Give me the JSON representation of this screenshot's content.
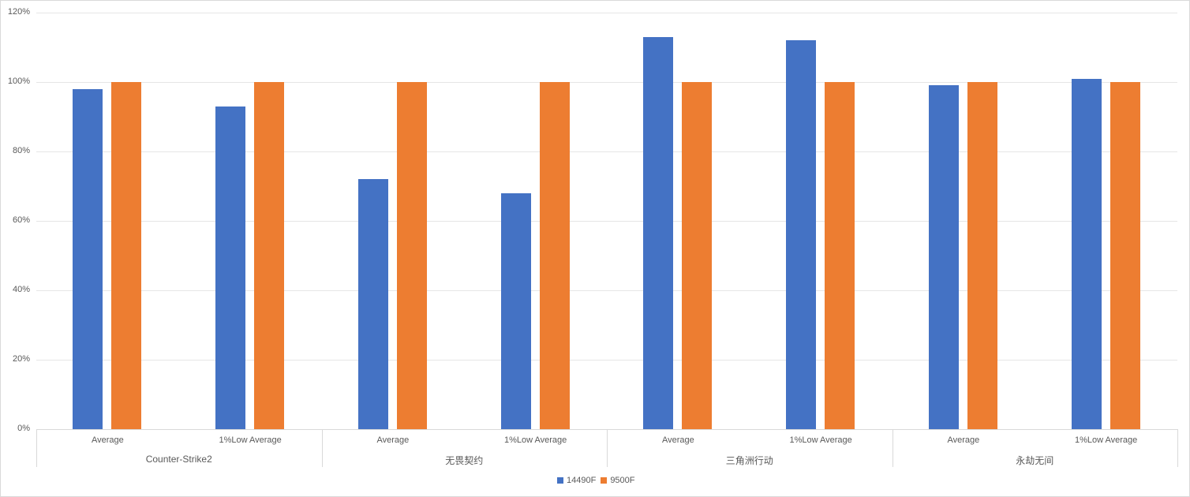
{
  "chart_data": {
    "type": "bar",
    "title": "",
    "xlabel": "",
    "ylabel": "",
    "ylim": [
      0,
      120
    ],
    "yticks": [
      "0%",
      "20%",
      "40%",
      "60%",
      "80%",
      "100%",
      "120%"
    ],
    "grid": true,
    "legend_position": "bottom",
    "groups": [
      {
        "name": "Counter-Strike2",
        "categories": [
          "Average",
          "1%Low Average"
        ]
      },
      {
        "name": "无畏契约",
        "categories": [
          "Average",
          "1%Low Average"
        ]
      },
      {
        "name": "三角洲行动",
        "categories": [
          "Average",
          "1%Low Average"
        ]
      },
      {
        "name": "永劫无间",
        "categories": [
          "Average",
          "1%Low Average"
        ]
      }
    ],
    "categories": [
      "Counter-Strike2 / Average",
      "Counter-Strike2 / 1%Low Average",
      "无畏契约 / Average",
      "无畏契约 / 1%Low Average",
      "三角洲行动 / Average",
      "三角洲行动 / 1%Low Average",
      "永劫无间 / Average",
      "永劫无间 / 1%Low Average"
    ],
    "series": [
      {
        "name": "14490F",
        "color": "#4472c4",
        "values": [
          98,
          93,
          72,
          68,
          113,
          112,
          99,
          101
        ]
      },
      {
        "name": "9500F",
        "color": "#ed7d31",
        "values": [
          100,
          100,
          100,
          100,
          100,
          100,
          100,
          100
        ]
      }
    ]
  },
  "axis": {
    "y_labels": [
      "120%",
      "100%",
      "80%",
      "60%",
      "40%",
      "20%",
      "0%"
    ]
  },
  "x_axis": {
    "sub_labels": [
      "Average",
      "1%Low Average",
      "Average",
      "1%Low Average",
      "Average",
      "1%Low Average",
      "Average",
      "1%Low Average"
    ],
    "group_labels": [
      "Counter-Strike2",
      "无畏契约",
      "三角洲行动",
      "永劫无间"
    ]
  },
  "legend": {
    "items": [
      {
        "label": "14490F",
        "color": "#4472c4"
      },
      {
        "label": "9500F",
        "color": "#ed7d31"
      }
    ]
  }
}
